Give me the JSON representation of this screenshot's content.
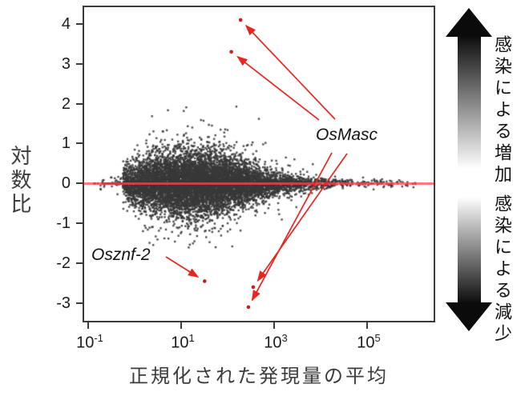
{
  "axes": {
    "y_label": "対数比",
    "x_label": "正規化された発現量の平均",
    "y_tick_labels": [
      "4",
      "3",
      "2",
      "1",
      "0",
      "-1",
      "-2",
      "-3"
    ],
    "x_tick_labels": [
      {
        "base": "10",
        "exp": "-1"
      },
      {
        "base": "10",
        "exp": "1"
      },
      {
        "base": "10",
        "exp": "3"
      },
      {
        "base": "10",
        "exp": "5"
      }
    ]
  },
  "gene_labels": {
    "osmasc": "OsMasc",
    "osznf2": "Osznf-2"
  },
  "legend": {
    "increase": "感染による増加",
    "decrease": "感染による減少"
  },
  "colors": {
    "accent_red": "#e8251f",
    "highlight_point": "#cf1b1b",
    "zero_line": "#ff4646",
    "cloud_point": "#383838",
    "axis": "#3a3a3a"
  },
  "chart_data": {
    "type": "scatter",
    "title": "",
    "xlabel": "正規化された発現量の平均",
    "ylabel": "対数比",
    "x_scale": "log10",
    "x_ticks": [
      0.1,
      10,
      1000,
      100000
    ],
    "x_range_log10": [
      -1.12,
      6.47
    ],
    "y_ticks": [
      4,
      3,
      2,
      1,
      0,
      -1,
      -2,
      -3
    ],
    "y_range": [
      -3.47,
      4.46
    ],
    "grid": false,
    "legend_position": "right",
    "reference_line_y": 0,
    "cloud": {
      "n_points": 9000,
      "seed": 7,
      "logx_mix": [
        {
          "mean": 1.2,
          "sd": 1.0,
          "weight": 0.88
        },
        {
          "mean": 2.8,
          "sd": 1.3,
          "weight": 0.12
        }
      ],
      "logx_clip": [
        -0.92,
        6.2
      ],
      "y_sd_base": 0.045,
      "y_sd_peak": 0.36,
      "y_sd_center": 1.2,
      "y_sd_gausswidth": 3.0,
      "heavy_tail_frac": 0.06,
      "heavy_tail_scale": 2.2,
      "left_quantize_below_logx": -0.25,
      "y_soft_clip": [
        -1.65,
        1.95
      ]
    },
    "highlighted_genes": [
      {
        "gene": "OsMasc",
        "x": 190,
        "y": 4.1
      },
      {
        "gene": "OsMasc",
        "x": 120,
        "y": 3.3
      },
      {
        "gene": "OsMasc",
        "x": 355,
        "y": -2.6
      },
      {
        "gene": "OsMasc",
        "x": 280,
        "y": -3.1
      },
      {
        "gene": "Osznf-2",
        "x": 32,
        "y": -2.45
      }
    ],
    "annotations": [
      {
        "text": "OsMasc",
        "points_to": "4 red arrows from label to the four OsMasc points"
      },
      {
        "text": "Osznf-2",
        "points_to": "1 red arrow from label to the Osznf-2 point"
      },
      {
        "text": "感染による増加",
        "meaning": "increase due to infection (up gradient arrow)"
      },
      {
        "text": "感染による減少",
        "meaning": "decrease due to infection (down gradient arrow)"
      }
    ]
  }
}
